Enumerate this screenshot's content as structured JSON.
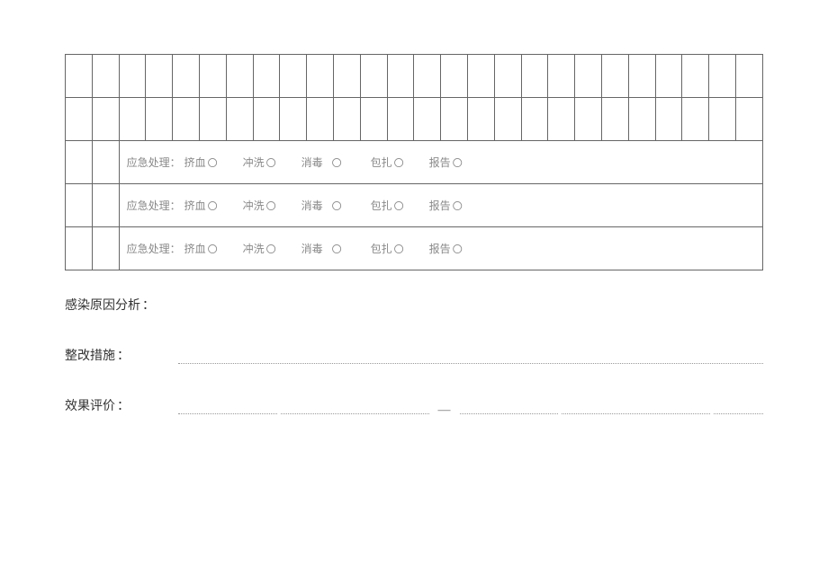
{
  "emergency": {
    "label": "应急处理：",
    "items": [
      "挤血",
      "冲洗",
      "消毒",
      "包扎",
      "报告"
    ],
    "marker": "〇"
  },
  "fields": {
    "analysis": "感染原因分析",
    "measures": "整改措施",
    "evaluation": "效果评价"
  },
  "colon": "："
}
